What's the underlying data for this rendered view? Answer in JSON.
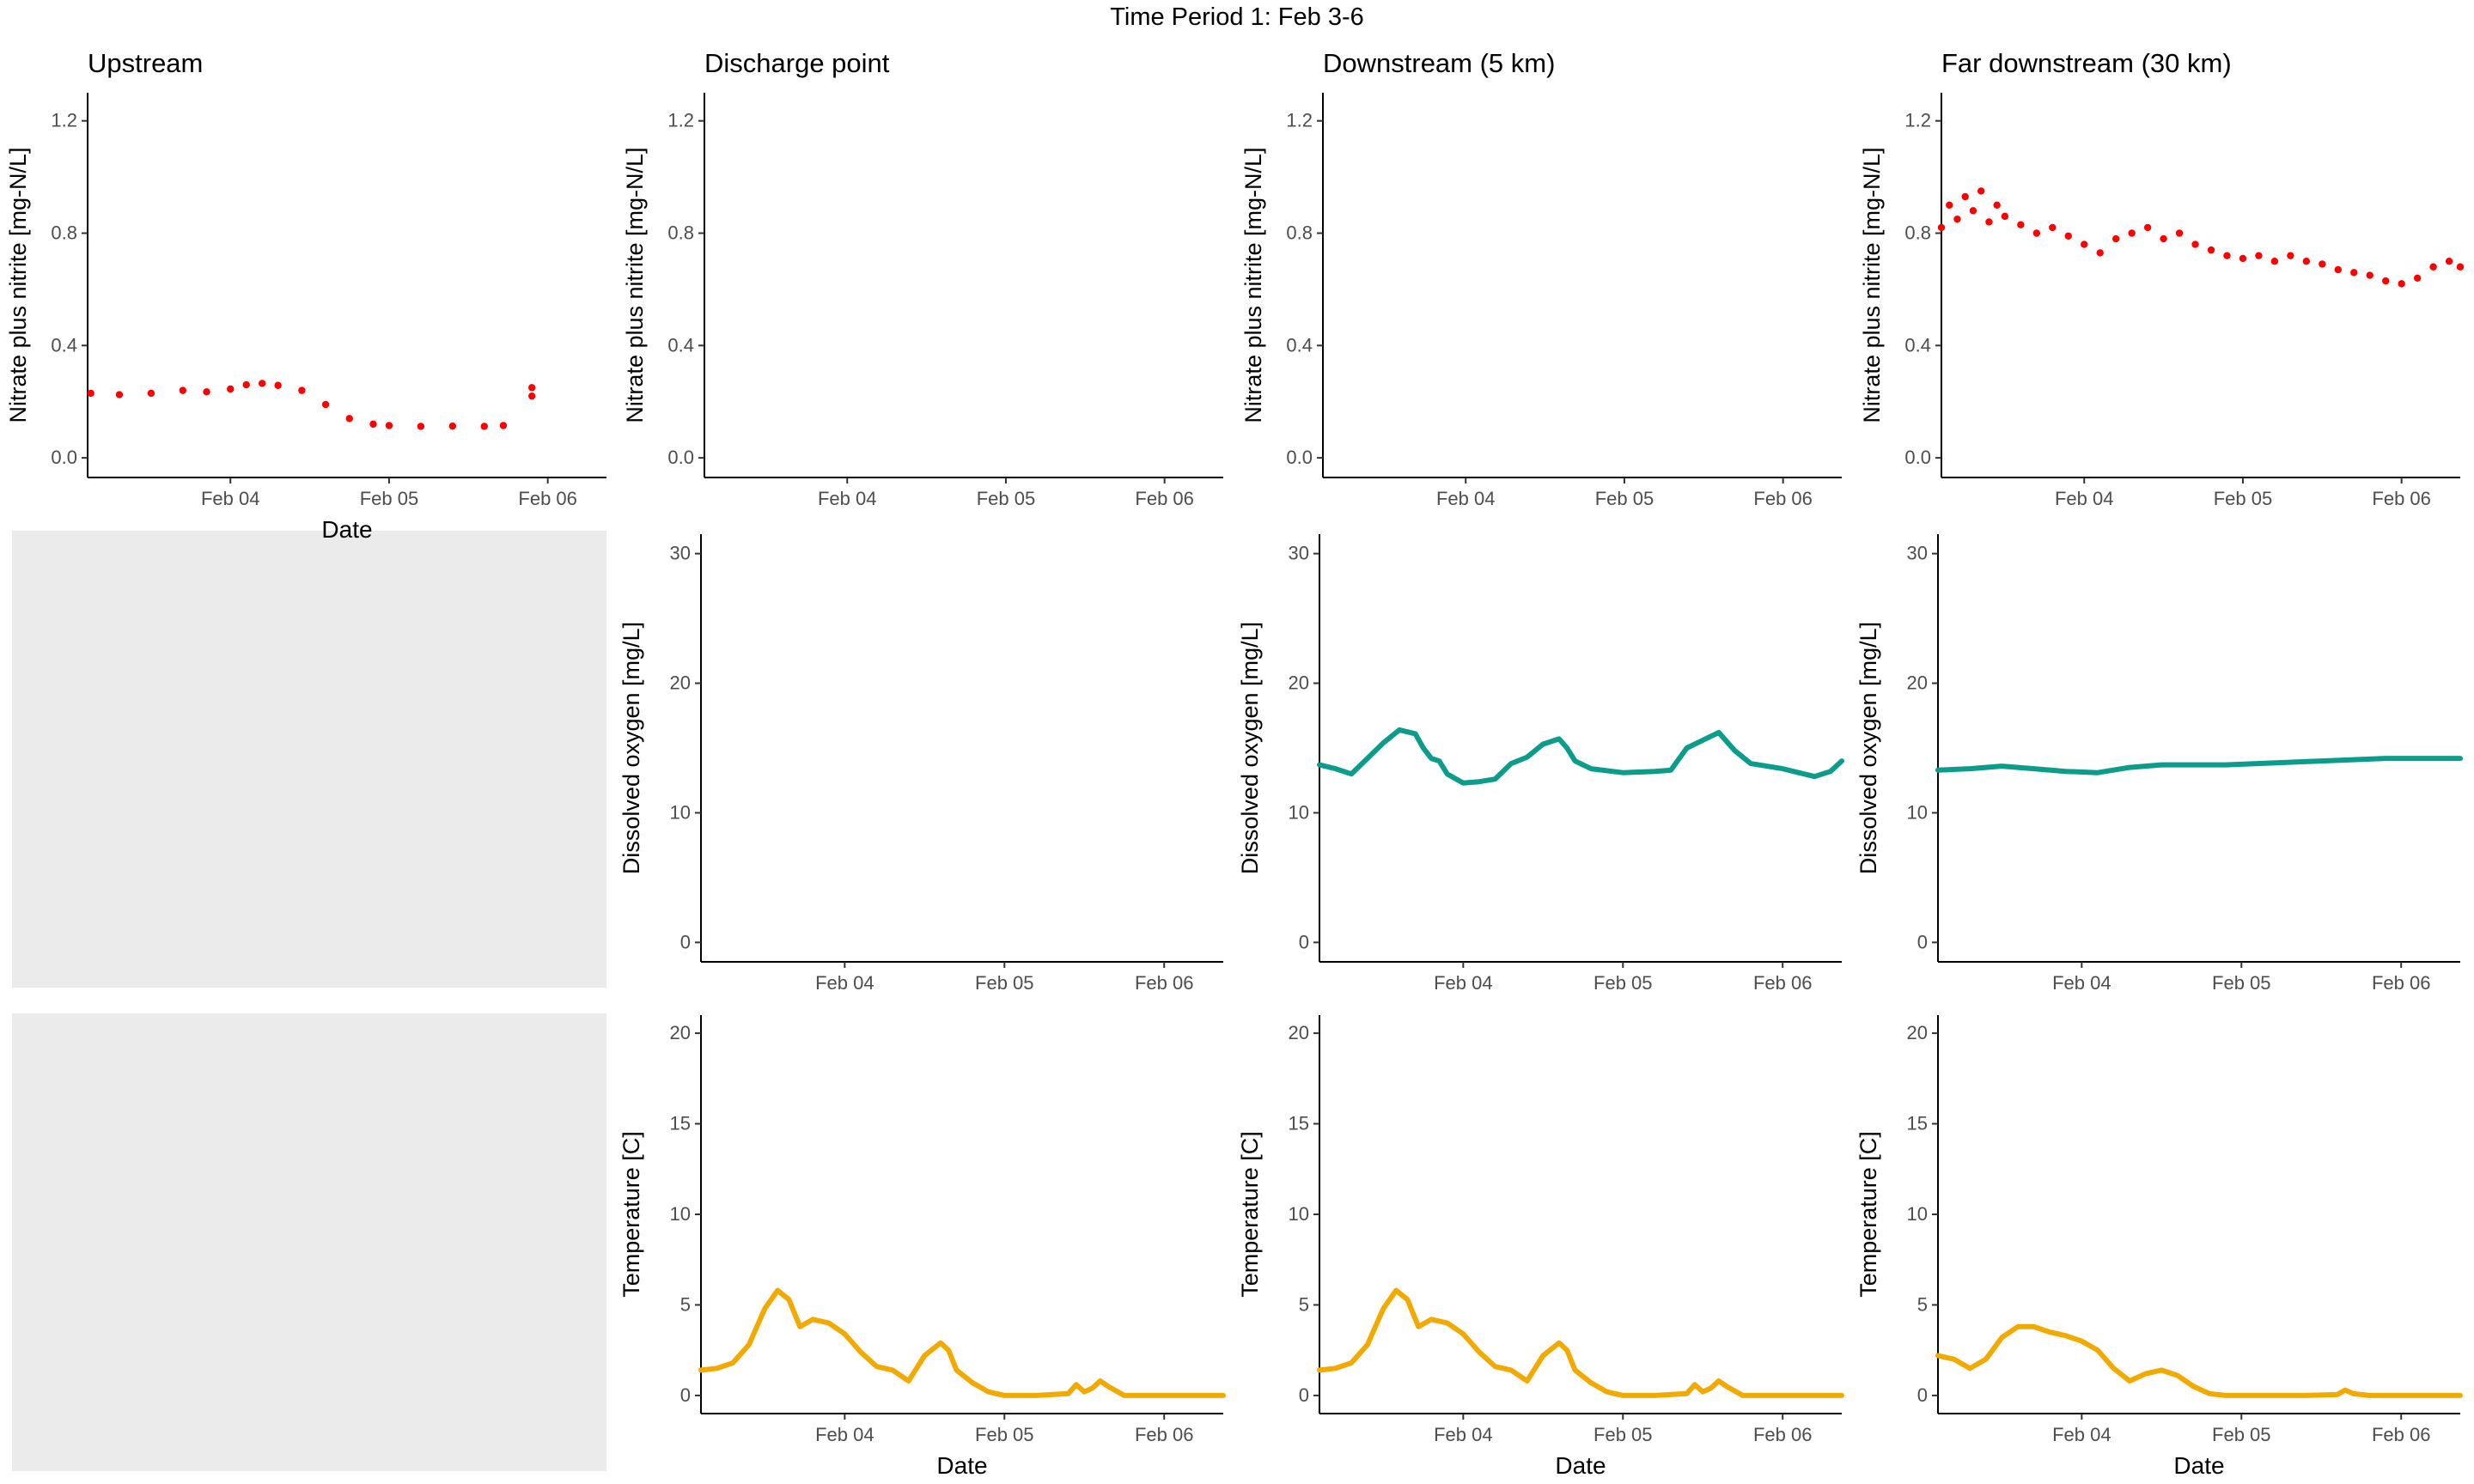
{
  "figure": {
    "title": "Time Period 1: Feb 3-6",
    "column_titles": [
      "Upstream",
      "Discharge point",
      "Downstream (5 km)",
      "Far downstream (30 km)"
    ],
    "colors": {
      "nitrate": "#ff0000",
      "oxygen": "#0c9c8c",
      "temperature": "#f2a900",
      "blank_panel": "#ebebeb"
    }
  },
  "chart_data": [
    {
      "type": "scatter",
      "panel": "nitrate-upstream",
      "title": "Upstream",
      "xlabel": "Date",
      "ylabel": "Nitrate plus nitrite [mg-N/L]",
      "x_ticks": [
        "Feb 04",
        "Feb 05",
        "Feb 06"
      ],
      "x_range_days": [
        3.1,
        6.37
      ],
      "ylim": [
        -0.07,
        1.3
      ],
      "y_ticks": [
        0.0,
        0.4,
        0.8,
        1.2
      ],
      "y_tick_labels": [
        "0.0",
        "0.4",
        "0.8",
        "1.2"
      ],
      "series": [
        {
          "style": "points",
          "color": "#ff0000",
          "x": [
            3.12,
            3.3,
            3.5,
            3.7,
            3.85,
            4.0,
            4.1,
            4.2,
            4.3,
            4.45,
            4.6,
            4.75,
            4.9,
            5.0,
            5.2,
            5.4,
            5.6,
            5.72,
            5.9,
            5.9
          ],
          "y": [
            0.23,
            0.225,
            0.23,
            0.24,
            0.235,
            0.245,
            0.26,
            0.265,
            0.258,
            0.24,
            0.19,
            0.14,
            0.12,
            0.115,
            0.112,
            0.113,
            0.112,
            0.115,
            0.25,
            0.22
          ]
        }
      ]
    },
    {
      "type": "scatter",
      "panel": "nitrate-discharge",
      "title": "Discharge point",
      "xlabel": "",
      "ylabel": "Nitrate plus nitrite [mg-N/L]",
      "x_ticks": [
        "Feb 04",
        "Feb 05",
        "Feb 06"
      ],
      "x_range_days": [
        3.1,
        6.37
      ],
      "ylim": [
        -0.07,
        1.3
      ],
      "y_ticks": [
        0.0,
        0.4,
        0.8,
        1.2
      ],
      "y_tick_labels": [
        "0.0",
        "0.4",
        "0.8",
        "1.2"
      ],
      "series": []
    },
    {
      "type": "scatter",
      "panel": "nitrate-downstream",
      "title": "Downstream (5 km)",
      "xlabel": "",
      "ylabel": "Nitrate plus nitrite [mg-N/L]",
      "x_ticks": [
        "Feb 04",
        "Feb 05",
        "Feb 06"
      ],
      "x_range_days": [
        3.1,
        6.37
      ],
      "ylim": [
        -0.07,
        1.3
      ],
      "y_ticks": [
        0.0,
        0.4,
        0.8,
        1.2
      ],
      "y_tick_labels": [
        "0.0",
        "0.4",
        "0.8",
        "1.2"
      ],
      "series": []
    },
    {
      "type": "scatter",
      "panel": "nitrate-far-downstream",
      "title": "Far downstream (30 km)",
      "xlabel": "",
      "ylabel": "Nitrate plus nitrite [mg-N/L]",
      "x_ticks": [
        "Feb 04",
        "Feb 05",
        "Feb 06"
      ],
      "x_range_days": [
        3.1,
        6.37
      ],
      "ylim": [
        -0.07,
        1.3
      ],
      "y_ticks": [
        0.0,
        0.4,
        0.8,
        1.2
      ],
      "y_tick_labels": [
        "0.0",
        "0.4",
        "0.8",
        "1.2"
      ],
      "series": [
        {
          "style": "points",
          "color": "#ff0000",
          "x": [
            3.1,
            3.15,
            3.2,
            3.25,
            3.3,
            3.35,
            3.4,
            3.45,
            3.5,
            3.6,
            3.7,
            3.8,
            3.9,
            4.0,
            4.1,
            4.2,
            4.3,
            4.4,
            4.5,
            4.6,
            4.7,
            4.8,
            4.9,
            5.0,
            5.1,
            5.2,
            5.3,
            5.4,
            5.5,
            5.6,
            5.7,
            5.8,
            5.9,
            6.0,
            6.1,
            6.2,
            6.3,
            6.37
          ],
          "y": [
            0.82,
            0.9,
            0.85,
            0.93,
            0.88,
            0.95,
            0.84,
            0.9,
            0.86,
            0.83,
            0.8,
            0.82,
            0.79,
            0.76,
            0.73,
            0.78,
            0.8,
            0.82,
            0.78,
            0.8,
            0.76,
            0.74,
            0.72,
            0.71,
            0.72,
            0.7,
            0.72,
            0.7,
            0.69,
            0.67,
            0.66,
            0.65,
            0.63,
            0.62,
            0.64,
            0.68,
            0.7,
            0.68
          ]
        }
      ]
    },
    {
      "type": "line",
      "panel": "oxygen-discharge",
      "title": "",
      "xlabel": "",
      "ylabel": "Dissolved oxygen [mg/L]",
      "x_ticks": [
        "Feb 04",
        "Feb 05",
        "Feb 06"
      ],
      "x_range_days": [
        3.1,
        6.37
      ],
      "ylim": [
        -1.5,
        31.5
      ],
      "y_ticks": [
        0,
        10,
        20,
        30
      ],
      "y_tick_labels": [
        "0",
        "10",
        "20",
        "30"
      ],
      "series": []
    },
    {
      "type": "line",
      "panel": "oxygen-downstream",
      "title": "",
      "xlabel": "",
      "ylabel": "Dissolved oxygen [mg/L]",
      "x_ticks": [
        "Feb 04",
        "Feb 05",
        "Feb 06"
      ],
      "x_range_days": [
        3.1,
        6.37
      ],
      "ylim": [
        -1.5,
        31.5
      ],
      "y_ticks": [
        0,
        10,
        20,
        30
      ],
      "y_tick_labels": [
        "0",
        "10",
        "20",
        "30"
      ],
      "series": [
        {
          "style": "line",
          "color": "#0c9c8c",
          "x": [
            3.1,
            3.2,
            3.3,
            3.4,
            3.5,
            3.6,
            3.7,
            3.75,
            3.8,
            3.85,
            3.9,
            4.0,
            4.1,
            4.2,
            4.3,
            4.4,
            4.5,
            4.6,
            4.65,
            4.7,
            4.8,
            5.0,
            5.2,
            5.3,
            5.4,
            5.5,
            5.6,
            5.7,
            5.8,
            6.0,
            6.1,
            6.2,
            6.3,
            6.37
          ],
          "y": [
            13.7,
            13.4,
            13.0,
            14.2,
            15.4,
            16.4,
            16.1,
            15.0,
            14.2,
            14.0,
            13.0,
            12.3,
            12.4,
            12.6,
            13.8,
            14.3,
            15.3,
            15.7,
            15.0,
            14.0,
            13.4,
            13.1,
            13.2,
            13.3,
            15.0,
            15.6,
            16.2,
            14.8,
            13.8,
            13.4,
            13.1,
            12.8,
            13.2,
            14.0
          ]
        }
      ]
    },
    {
      "type": "line",
      "panel": "oxygen-far-downstream",
      "title": "",
      "xlabel": "",
      "ylabel": "Dissolved oxygen [mg/L]",
      "x_ticks": [
        "Feb 04",
        "Feb 05",
        "Feb 06"
      ],
      "x_range_days": [
        3.1,
        6.37
      ],
      "ylim": [
        -1.5,
        31.5
      ],
      "y_ticks": [
        0,
        10,
        20,
        30
      ],
      "y_tick_labels": [
        "0",
        "10",
        "20",
        "30"
      ],
      "series": [
        {
          "style": "line",
          "color": "#0c9c8c",
          "x": [
            3.1,
            3.3,
            3.5,
            3.7,
            3.9,
            4.1,
            4.3,
            4.5,
            4.7,
            4.9,
            5.1,
            5.3,
            5.5,
            5.7,
            5.9,
            6.1,
            6.3,
            6.37
          ],
          "y": [
            13.3,
            13.4,
            13.6,
            13.4,
            13.2,
            13.1,
            13.5,
            13.7,
            13.7,
            13.7,
            13.8,
            13.9,
            14.0,
            14.1,
            14.2,
            14.2,
            14.2,
            14.2
          ]
        }
      ]
    },
    {
      "type": "line",
      "panel": "temperature-discharge",
      "title": "",
      "xlabel": "Date",
      "ylabel": "Temperature [C]",
      "x_ticks": [
        "Feb 04",
        "Feb 05",
        "Feb 06"
      ],
      "x_range_days": [
        3.1,
        6.37
      ],
      "ylim": [
        -1.0,
        21.0
      ],
      "y_ticks": [
        0,
        5,
        10,
        15,
        20
      ],
      "y_tick_labels": [
        "0",
        "5",
        "10",
        "15",
        "20"
      ],
      "series": [
        {
          "style": "line",
          "color": "#f2a900",
          "x": [
            3.1,
            3.2,
            3.3,
            3.4,
            3.5,
            3.58,
            3.65,
            3.72,
            3.8,
            3.9,
            4.0,
            4.1,
            4.2,
            4.3,
            4.4,
            4.5,
            4.6,
            4.65,
            4.7,
            4.8,
            4.9,
            5.0,
            5.2,
            5.4,
            5.45,
            5.5,
            5.55,
            5.6,
            5.65,
            5.75,
            5.85,
            6.0,
            6.2,
            6.37
          ],
          "y": [
            1.4,
            1.5,
            1.8,
            2.8,
            4.8,
            5.8,
            5.3,
            3.8,
            4.2,
            4.0,
            3.4,
            2.4,
            1.6,
            1.4,
            0.8,
            2.2,
            2.9,
            2.5,
            1.4,
            0.7,
            0.2,
            0.0,
            0.0,
            0.1,
            0.6,
            0.2,
            0.4,
            0.8,
            0.5,
            0.0,
            0.0,
            0.0,
            0.0,
            0.0
          ]
        }
      ]
    },
    {
      "type": "line",
      "panel": "temperature-downstream",
      "title": "",
      "xlabel": "Date",
      "ylabel": "Temperature [C]",
      "x_ticks": [
        "Feb 04",
        "Feb 05",
        "Feb 06"
      ],
      "x_range_days": [
        3.1,
        6.37
      ],
      "ylim": [
        -1.0,
        21.0
      ],
      "y_ticks": [
        0,
        5,
        10,
        15,
        20
      ],
      "y_tick_labels": [
        "0",
        "5",
        "10",
        "15",
        "20"
      ],
      "series": [
        {
          "style": "line",
          "color": "#f2a900",
          "x": [
            3.1,
            3.2,
            3.3,
            3.4,
            3.5,
            3.58,
            3.65,
            3.72,
            3.8,
            3.9,
            4.0,
            4.1,
            4.2,
            4.3,
            4.4,
            4.5,
            4.6,
            4.65,
            4.7,
            4.8,
            4.9,
            5.0,
            5.2,
            5.4,
            5.45,
            5.5,
            5.55,
            5.6,
            5.65,
            5.75,
            5.85,
            6.0,
            6.2,
            6.37
          ],
          "y": [
            1.4,
            1.5,
            1.8,
            2.8,
            4.8,
            5.8,
            5.3,
            3.8,
            4.2,
            4.0,
            3.4,
            2.4,
            1.6,
            1.4,
            0.8,
            2.2,
            2.9,
            2.5,
            1.4,
            0.7,
            0.2,
            0.0,
            0.0,
            0.1,
            0.6,
            0.2,
            0.4,
            0.8,
            0.5,
            0.0,
            0.0,
            0.0,
            0.0,
            0.0
          ]
        }
      ]
    },
    {
      "type": "line",
      "panel": "temperature-far-downstream",
      "title": "",
      "xlabel": "Date",
      "ylabel": "Temperature [C]",
      "x_ticks": [
        "Feb 04",
        "Feb 05",
        "Feb 06"
      ],
      "x_range_days": [
        3.1,
        6.37
      ],
      "ylim": [
        -1.0,
        21.0
      ],
      "y_ticks": [
        0,
        5,
        10,
        15,
        20
      ],
      "y_tick_labels": [
        "0",
        "5",
        "10",
        "15",
        "20"
      ],
      "series": [
        {
          "style": "line",
          "color": "#f2a900",
          "x": [
            3.1,
            3.2,
            3.3,
            3.4,
            3.5,
            3.6,
            3.7,
            3.8,
            3.9,
            4.0,
            4.1,
            4.2,
            4.3,
            4.4,
            4.5,
            4.6,
            4.7,
            4.8,
            4.9,
            5.0,
            5.2,
            5.4,
            5.6,
            5.65,
            5.7,
            5.8,
            6.0,
            6.2,
            6.37
          ],
          "y": [
            2.2,
            2.0,
            1.5,
            2.0,
            3.2,
            3.8,
            3.8,
            3.5,
            3.3,
            3.0,
            2.5,
            1.5,
            0.8,
            1.2,
            1.4,
            1.1,
            0.5,
            0.1,
            0.0,
            0.0,
            0.0,
            0.0,
            0.05,
            0.3,
            0.1,
            0.0,
            0.0,
            0.0,
            0.0
          ]
        }
      ]
    }
  ]
}
